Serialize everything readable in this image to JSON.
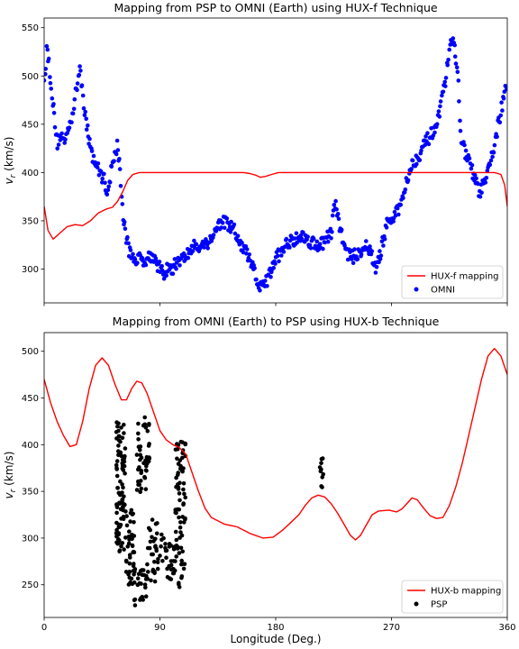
{
  "figure": {
    "xlabel": "Longitude (Deg.)",
    "x_ticks": [
      0,
      90,
      180,
      270,
      360
    ]
  },
  "chart_data": [
    {
      "type": "line",
      "title": "Mapping from PSP to OMNI (Earth) using HUX-f Technique",
      "ylabel": "v_r (km/s)",
      "xlim": [
        0,
        360
      ],
      "ylim": [
        265,
        560
      ],
      "y_ticks": [
        300,
        350,
        400,
        450,
        500,
        550
      ],
      "grid": false,
      "legend_position": "lower right",
      "series": [
        {
          "name": "HUX-f mapping",
          "kind": "line",
          "color": "#ff0000",
          "points": [
            [
              0,
              365
            ],
            [
              3,
              340
            ],
            [
              7,
              331
            ],
            [
              12,
              337
            ],
            [
              18,
              344
            ],
            [
              24,
              346
            ],
            [
              30,
              345
            ],
            [
              36,
              350
            ],
            [
              42,
              358
            ],
            [
              48,
              362
            ],
            [
              53,
              364
            ],
            [
              57,
              370
            ],
            [
              61,
              380
            ],
            [
              65,
              392
            ],
            [
              69,
              398
            ],
            [
              74,
              400
            ],
            [
              80,
              400
            ],
            [
              100,
              400
            ],
            [
              120,
              400
            ],
            [
              140,
              400
            ],
            [
              155,
              400
            ],
            [
              160,
              399
            ],
            [
              165,
              397
            ],
            [
              168,
              395
            ],
            [
              172,
              396
            ],
            [
              177,
              398
            ],
            [
              182,
              400
            ],
            [
              190,
              400
            ],
            [
              210,
              400
            ],
            [
              240,
              400
            ],
            [
              270,
              400
            ],
            [
              300,
              400
            ],
            [
              330,
              400
            ],
            [
              350,
              400
            ],
            [
              355,
              398
            ],
            [
              358,
              387
            ],
            [
              360,
              365
            ]
          ]
        },
        {
          "name": "OMNI",
          "kind": "scatter",
          "color": "#0000ff",
          "anchors": [
            [
              0,
              490
            ],
            [
              2,
              530
            ],
            [
              4,
              510
            ],
            [
              7,
              470
            ],
            [
              10,
              430
            ],
            [
              13,
              440
            ],
            [
              16,
              430
            ],
            [
              19,
              450
            ],
            [
              22,
              460
            ],
            [
              25,
              485
            ],
            [
              28,
              510
            ],
            [
              31,
              470
            ],
            [
              34,
              440
            ],
            [
              37,
              420
            ],
            [
              40,
              410
            ],
            [
              43,
              400
            ],
            [
              46,
              395
            ],
            [
              49,
              380
            ],
            [
              52,
              400
            ],
            [
              55,
              420
            ],
            [
              57,
              430
            ],
            [
              59,
              400
            ],
            [
              61,
              360
            ],
            [
              64,
              330
            ],
            [
              67,
              315
            ],
            [
              72,
              310
            ],
            [
              78,
              310
            ],
            [
              84,
              315
            ],
            [
              88,
              305
            ],
            [
              92,
              295
            ],
            [
              96,
              300
            ],
            [
              100,
              300
            ],
            [
              104,
              310
            ],
            [
              108,
              310
            ],
            [
              113,
              318
            ],
            [
              118,
              325
            ],
            [
              123,
              325
            ],
            [
              128,
              328
            ],
            [
              133,
              340
            ],
            [
              138,
              350
            ],
            [
              143,
              345
            ],
            [
              148,
              340
            ],
            [
              152,
              325
            ],
            [
              156,
              320
            ],
            [
              160,
              308
            ],
            [
              163,
              298
            ],
            [
              166,
              287
            ],
            [
              168,
              280
            ],
            [
              171,
              283
            ],
            [
              174,
              290
            ],
            [
              177,
              300
            ],
            [
              180,
              310
            ],
            [
              184,
              318
            ],
            [
              188,
              325
            ],
            [
              193,
              330
            ],
            [
              198,
              335
            ],
            [
              203,
              332
            ],
            [
              208,
              328
            ],
            [
              213,
              325
            ],
            [
              218,
              328
            ],
            [
              223,
              338
            ],
            [
              226,
              368
            ],
            [
              229,
              350
            ],
            [
              232,
              330
            ],
            [
              235,
              318
            ],
            [
              240,
              312
            ],
            [
              245,
              318
            ],
            [
              250,
              325
            ],
            [
              254,
              315
            ],
            [
              258,
              300
            ],
            [
              262,
              320
            ],
            [
              266,
              345
            ],
            [
              270,
              350
            ],
            [
              275,
              360
            ],
            [
              279,
              375
            ],
            [
              282,
              395
            ],
            [
              285,
              405
            ],
            [
              288,
              412
            ],
            [
              292,
              420
            ],
            [
              296,
              430
            ],
            [
              300,
              438
            ],
            [
              304,
              442
            ],
            [
              307,
              458
            ],
            [
              310,
              480
            ],
            [
              313,
              505
            ],
            [
              316,
              530
            ],
            [
              318,
              545
            ],
            [
              320,
              520
            ],
            [
              322,
              490
            ],
            [
              324,
              440
            ],
            [
              327,
              420
            ],
            [
              330,
              412
            ],
            [
              333,
              400
            ],
            [
              336,
              388
            ],
            [
              338,
              380
            ],
            [
              341,
              385
            ],
            [
              344,
              395
            ],
            [
              347,
              410
            ],
            [
              350,
              430
            ],
            [
              353,
              450
            ],
            [
              356,
              470
            ],
            [
              360,
              492
            ]
          ],
          "scatter_points_per_degree": 1.7,
          "scatter_spread": 7
        }
      ]
    },
    {
      "type": "line",
      "title": "Mapping from OMNI (Earth) to PSP using HUX-b Technique",
      "ylabel": "v_r (km/s)",
      "xlim": [
        0,
        360
      ],
      "ylim": [
        215,
        520
      ],
      "y_ticks": [
        250,
        300,
        350,
        400,
        450,
        500
      ],
      "grid": false,
      "legend_position": "lower right",
      "series": [
        {
          "name": "HUX-b mapping",
          "kind": "line",
          "color": "#ff0000",
          "points": [
            [
              0,
              470
            ],
            [
              5,
              445
            ],
            [
              10,
              425
            ],
            [
              15,
              410
            ],
            [
              20,
              398
            ],
            [
              25,
              400
            ],
            [
              30,
              425
            ],
            [
              35,
              460
            ],
            [
              40,
              485
            ],
            [
              45,
              493
            ],
            [
              50,
              485
            ],
            [
              55,
              465
            ],
            [
              60,
              448
            ],
            [
              64,
              448
            ],
            [
              68,
              460
            ],
            [
              72,
              468
            ],
            [
              76,
              466
            ],
            [
              80,
              455
            ],
            [
              85,
              435
            ],
            [
              90,
              415
            ],
            [
              95,
              405
            ],
            [
              100,
              400
            ],
            [
              105,
              397
            ],
            [
              110,
              390
            ],
            [
              115,
              370
            ],
            [
              120,
              350
            ],
            [
              125,
              332
            ],
            [
              130,
              322
            ],
            [
              140,
              315
            ],
            [
              150,
              312
            ],
            [
              160,
              305
            ],
            [
              170,
              300
            ],
            [
              178,
              301
            ],
            [
              185,
              308
            ],
            [
              192,
              317
            ],
            [
              198,
              325
            ],
            [
              203,
              335
            ],
            [
              208,
              343
            ],
            [
              213,
              346
            ],
            [
              218,
              344
            ],
            [
              223,
              337
            ],
            [
              228,
              327
            ],
            [
              233,
              315
            ],
            [
              238,
              303
            ],
            [
              242,
              298
            ],
            [
              246,
              303
            ],
            [
              250,
              313
            ],
            [
              255,
              325
            ],
            [
              260,
              329
            ],
            [
              268,
              330
            ],
            [
              274,
              328
            ],
            [
              278,
              331
            ],
            [
              282,
              337
            ],
            [
              286,
              343
            ],
            [
              290,
              341
            ],
            [
              295,
              332
            ],
            [
              300,
              324
            ],
            [
              305,
              321
            ],
            [
              310,
              322
            ],
            [
              315,
              335
            ],
            [
              320,
              355
            ],
            [
              325,
              380
            ],
            [
              330,
              410
            ],
            [
              335,
              440
            ],
            [
              340,
              470
            ],
            [
              345,
              495
            ],
            [
              350,
              503
            ],
            [
              355,
              495
            ],
            [
              360,
              475
            ]
          ]
        },
        {
          "name": "PSP",
          "kind": "scatter",
          "color": "#000000",
          "clusters": [
            {
              "x_range": [
                56,
                63
              ],
              "y_range": [
                285,
                425
              ],
              "count": 90
            },
            {
              "x_range": [
                63,
                70
              ],
              "y_range": [
                250,
                330
              ],
              "count": 45
            },
            {
              "x_range": [
                70,
                80
              ],
              "y_range": [
                228,
                268
              ],
              "count": 25
            },
            {
              "x_range": [
                72,
                82
              ],
              "y_range": [
                345,
                432
              ],
              "count": 45
            },
            {
              "x_range": [
                80,
                92
              ],
              "y_range": [
                250,
                320
              ],
              "count": 35
            },
            {
              "x_range": [
                92,
                102
              ],
              "y_range": [
                255,
                300
              ],
              "count": 30
            },
            {
              "x_range": [
                102,
                110
              ],
              "y_range": [
                245,
                405
              ],
              "count": 70
            },
            {
              "x_range": [
                214,
                218
              ],
              "y_range": [
                348,
                388
              ],
              "count": 10
            }
          ]
        }
      ]
    }
  ]
}
